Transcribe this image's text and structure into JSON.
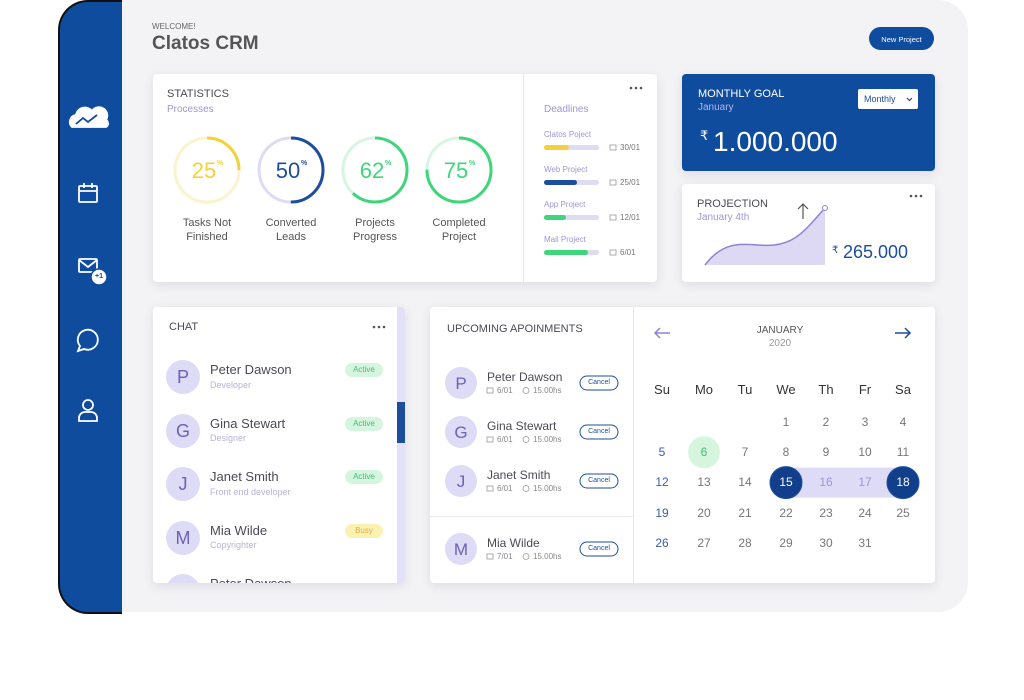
{
  "sidebar": {
    "mail_badge": "+1"
  },
  "header": {
    "welcome": "WELCOME!",
    "title": "Clatos CRM",
    "button": "New Project"
  },
  "statistics": {
    "title": "STATISTICS",
    "subtitle": "Processes",
    "items": [
      {
        "value": 25,
        "unit": "%",
        "label": "Tasks Not Finished",
        "color": "#f2d23b",
        "track": "#fbf3cc"
      },
      {
        "value": 50,
        "unit": "%",
        "label": "Converted Leads",
        "color": "#1d4e9e",
        "track": "#dedcf2"
      },
      {
        "value": 62,
        "unit": "%",
        "label": "Projects Progress",
        "color": "#3fd57b",
        "track": "#d8f4e3"
      },
      {
        "value": 75,
        "unit": "%",
        "label": "Completed Project",
        "color": "#3fd57b",
        "track": "#d8f4e3"
      }
    ]
  },
  "deadlines": {
    "title": "Deadlines",
    "items": [
      {
        "name": "Clatos Poject",
        "date": "30/01",
        "progress": 45,
        "color": "#f2d23b"
      },
      {
        "name": "Web Project",
        "date": "25/01",
        "progress": 60,
        "color": "#1d4e9e"
      },
      {
        "name": "App Project",
        "date": "12/01",
        "progress": 40,
        "color": "#3fd57b"
      },
      {
        "name": "Mail Project",
        "date": "6/01",
        "progress": 80,
        "color": "#3fd57b"
      }
    ]
  },
  "monthly_goal": {
    "title": "MONTHLY GOAL",
    "subtitle": "January",
    "dropdown": "Monthly",
    "currency": "₹",
    "amount": "1.000.000"
  },
  "projection": {
    "title": "PROJECTION",
    "subtitle": "January 4th",
    "currency": "₹",
    "amount": "265.000"
  },
  "chat": {
    "title": "CHAT",
    "contacts": [
      {
        "initial": "P",
        "name": "Peter Dawson",
        "role": "Developer",
        "status": "Active"
      },
      {
        "initial": "G",
        "name": "Gina Stewart",
        "role": "Designer",
        "status": "Active"
      },
      {
        "initial": "J",
        "name": "Janet Smith",
        "role": "Front end developer",
        "status": "Active"
      },
      {
        "initial": "M",
        "name": "Mia Wilde",
        "role": "Copyrighter",
        "status": "Busy"
      },
      {
        "initial": "P",
        "name": "Peter Dawson"
      }
    ]
  },
  "appointments": {
    "title": "UPCOMING APOINMENTS",
    "items": [
      {
        "initial": "P",
        "name": "Peter Dawson",
        "date": "6/01",
        "time": "15.00hs",
        "action": "Cancel"
      },
      {
        "initial": "G",
        "name": "Gina Stewart",
        "date": "6/01",
        "time": "15.00hs",
        "action": "Cancel"
      },
      {
        "initial": "J",
        "name": "Janet Smith",
        "date": "6/01",
        "time": "15.00hs",
        "action": "Cancel"
      },
      {
        "initial": "M",
        "name": "Mia Wilde",
        "date": "7/01",
        "time": "15.00hs",
        "action": "Cancel"
      }
    ]
  },
  "calendar": {
    "month": "JANUARY",
    "year": "2020",
    "weekdays": [
      "Su",
      "Mo",
      "Tu",
      "We",
      "Th",
      "Fr",
      "Sa"
    ],
    "weeks": [
      [
        null,
        null,
        null,
        1,
        2,
        3,
        4
      ],
      [
        5,
        6,
        7,
        8,
        9,
        10,
        11
      ],
      [
        12,
        13,
        14,
        15,
        16,
        17,
        18
      ],
      [
        19,
        20,
        21,
        22,
        23,
        24,
        25
      ],
      [
        26,
        27,
        28,
        29,
        30,
        31,
        null
      ]
    ],
    "today": 6,
    "range": [
      15,
      18
    ]
  }
}
